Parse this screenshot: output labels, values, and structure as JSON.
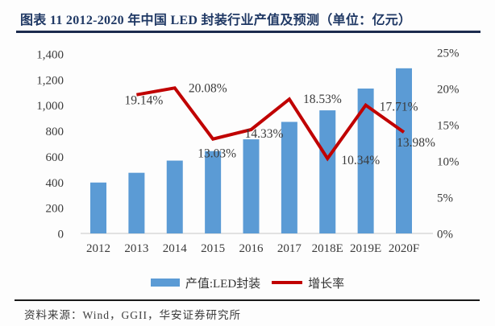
{
  "title": "图表 11 2012-2020 年中国 LED 封装行业产值及预测（单位：亿元）",
  "source": "资料来源：Wind，GGII，华安证券研究所",
  "colors": {
    "bar": "#5b9bd5",
    "line": "#c00000",
    "title": "#1f3864",
    "axis_text": "#3b3b3b",
    "baseline": "#d2d2d2"
  },
  "legend": {
    "bar_label": "产值:LED封装",
    "line_label": "增长率"
  },
  "chart_data": {
    "type": "bar+line",
    "title": "图表 11 2012-2020 年中国 LED 封装行业产值及预测（单位：亿元）",
    "categories": [
      "2012",
      "2013",
      "2014",
      "2015",
      "2016",
      "2017",
      "2018E",
      "2019E",
      "2020F"
    ],
    "series": [
      {
        "name": "产值:LED封装",
        "type": "bar",
        "axis": "left",
        "color": "#5b9bd5",
        "values": [
          397,
          473,
          568,
          642,
          734,
          870,
          960,
          1130,
          1288
        ]
      },
      {
        "name": "增长率",
        "type": "line",
        "axis": "right",
        "color": "#c00000",
        "values": [
          null,
          19.14,
          20.08,
          13.03,
          14.33,
          18.53,
          10.34,
          17.71,
          13.98
        ],
        "point_labels": [
          null,
          "19.14%",
          "20.08%",
          "13.03%",
          "14.33%",
          "18.53%",
          "10.34%",
          "17.71%",
          "13.98%"
        ]
      }
    ],
    "left_axis": {
      "min": 0,
      "max": 1400,
      "step": 200,
      "tick_labels": [
        "0",
        "200",
        "400",
        "600",
        "800",
        "1,000",
        "1,200",
        "1,400"
      ]
    },
    "right_axis": {
      "min": 0,
      "max": 25,
      "step": 5,
      "tick_labels": [
        "0%",
        "5%",
        "10%",
        "15%",
        "20%",
        "25%"
      ]
    },
    "grid": false,
    "legend_position": "bottom"
  }
}
